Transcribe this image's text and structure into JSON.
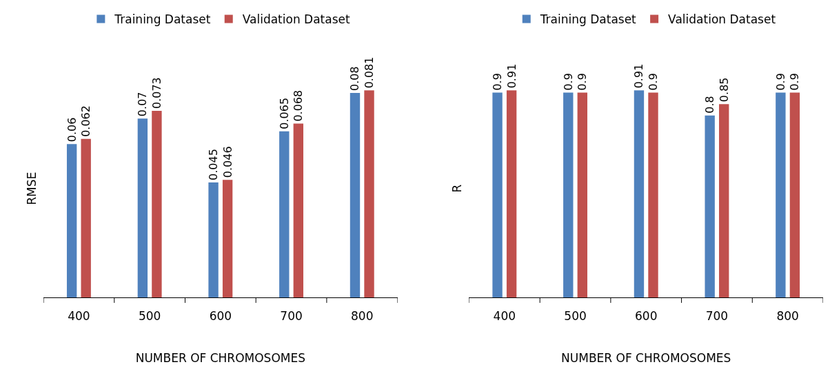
{
  "chart_data": [
    {
      "type": "bar",
      "xlabel": "NUMBER OF CHROMOSOMES",
      "ylabel": "RMSE",
      "categories": [
        "400",
        "500",
        "600",
        "700",
        "800"
      ],
      "series": [
        {
          "name": "Training Dataset",
          "color": "#4f81bd",
          "values": [
            0.06,
            0.07,
            0.045,
            0.065,
            0.08
          ]
        },
        {
          "name": "Validation Dataset",
          "color": "#c0504d",
          "values": [
            0.062,
            0.073,
            0.046,
            0.068,
            0.081
          ]
        }
      ],
      "data_labels": true,
      "legend": "top",
      "tick_labels": "x"
    },
    {
      "type": "bar",
      "xlabel": "NUMBER OF CHROMOSOMES",
      "ylabel": "R",
      "categories": [
        "400",
        "500",
        "600",
        "700",
        "800"
      ],
      "series": [
        {
          "name": "Training Dataset",
          "color": "#4f81bd",
          "values": [
            0.9,
            0.9,
            0.91,
            0.8,
            0.9
          ]
        },
        {
          "name": "Validation Dataset",
          "color": "#c0504d",
          "values": [
            0.91,
            0.9,
            0.9,
            0.85,
            0.9
          ]
        }
      ],
      "data_labels": true,
      "legend": "top",
      "tick_labels": "x"
    }
  ]
}
